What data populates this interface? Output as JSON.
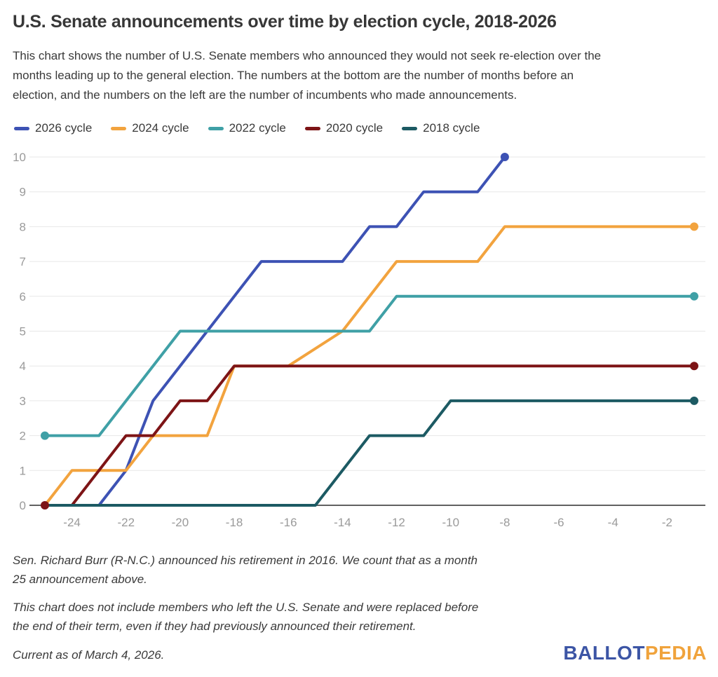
{
  "title": "U.S. Senate announcements over time by election cycle, 2018-2026",
  "description": "This chart shows the number of U.S. Senate members who announced they would not seek re-election over the\nmonths leading up to the general election. The numbers at the bottom are the number of months before an\nelection, and the numbers on the left are the number of incumbents who made announcements.",
  "chart_data": {
    "type": "line",
    "title": "U.S. Senate announcements over time by election cycle, 2018-2026",
    "xlabel": "",
    "ylabel": "",
    "xlim": [
      -25.6,
      -0.55
    ],
    "ylim": [
      0,
      10
    ],
    "grid": "horizontal",
    "legend_position": "top",
    "x_ticks": [
      -24,
      -22,
      -20,
      -18,
      -16,
      -14,
      -12,
      -10,
      -8,
      -6,
      -4,
      -2
    ],
    "y_ticks": [
      0,
      1,
      2,
      3,
      4,
      5,
      6,
      7,
      8,
      9,
      10
    ],
    "colors": {
      "grid": "#e7e7e7",
      "axis": "#616161",
      "tick_text": "#9a9a9a"
    },
    "series": [
      {
        "name": "2026 cycle",
        "color": "#3D52B4",
        "points": [
          [
            -25,
            0
          ],
          [
            -23,
            0
          ],
          [
            -22,
            1
          ],
          [
            -21,
            3
          ],
          [
            -17,
            7
          ],
          [
            -14,
            7
          ],
          [
            -13,
            8
          ],
          [
            -12,
            8
          ],
          [
            -11,
            9
          ],
          [
            -9,
            9
          ],
          [
            -8,
            10
          ]
        ],
        "markers": [
          [
            -8,
            10
          ]
        ]
      },
      {
        "name": "2024 cycle",
        "color": "#F2A33E",
        "points": [
          [
            -25,
            0
          ],
          [
            -24,
            1
          ],
          [
            -22,
            1
          ],
          [
            -21,
            2
          ],
          [
            -19,
            2
          ],
          [
            -18,
            4
          ],
          [
            -16,
            4
          ],
          [
            -14,
            5
          ],
          [
            -12,
            7
          ],
          [
            -9,
            7
          ],
          [
            -8,
            8
          ],
          [
            -1,
            8
          ]
        ],
        "markers": [
          [
            -1,
            8
          ]
        ]
      },
      {
        "name": "2022 cycle",
        "color": "#3FA0A6",
        "points": [
          [
            -25,
            2
          ],
          [
            -23,
            2
          ],
          [
            -20,
            5
          ],
          [
            -13,
            5
          ],
          [
            -12,
            6
          ],
          [
            -1,
            6
          ]
        ],
        "markers": [
          [
            -25,
            2
          ],
          [
            -1,
            6
          ]
        ]
      },
      {
        "name": "2020 cycle",
        "color": "#7D1416",
        "points": [
          [
            -25,
            0
          ],
          [
            -24,
            0
          ],
          [
            -22,
            2
          ],
          [
            -21,
            2
          ],
          [
            -20,
            3
          ],
          [
            -19,
            3
          ],
          [
            -18,
            4
          ],
          [
            -1,
            4
          ]
        ],
        "markers": [
          [
            -25,
            0
          ],
          [
            -1,
            4
          ]
        ]
      },
      {
        "name": "2018 cycle",
        "color": "#1C5A63",
        "points": [
          [
            -25,
            0
          ],
          [
            -15,
            0
          ],
          [
            -13,
            2
          ],
          [
            -11,
            2
          ],
          [
            -10,
            3
          ],
          [
            -1,
            3
          ]
        ],
        "markers": [
          [
            -1,
            3
          ]
        ]
      }
    ]
  },
  "notes": [
    "Sen. Richard Burr (R-N.C.) announced his retirement in 2016. We count that as a month\n25 announcement above.",
    "This chart does not include members who left the U.S. Senate and were replaced before\nthe end of their term, even if they had previously announced their retirement."
  ],
  "current_as_of": "Current as of March 4, 2026.",
  "logo": {
    "part1": "BALLOT",
    "part2": "PEDIA",
    "blue": "#3C55A5",
    "gold": "#F0A33C"
  }
}
